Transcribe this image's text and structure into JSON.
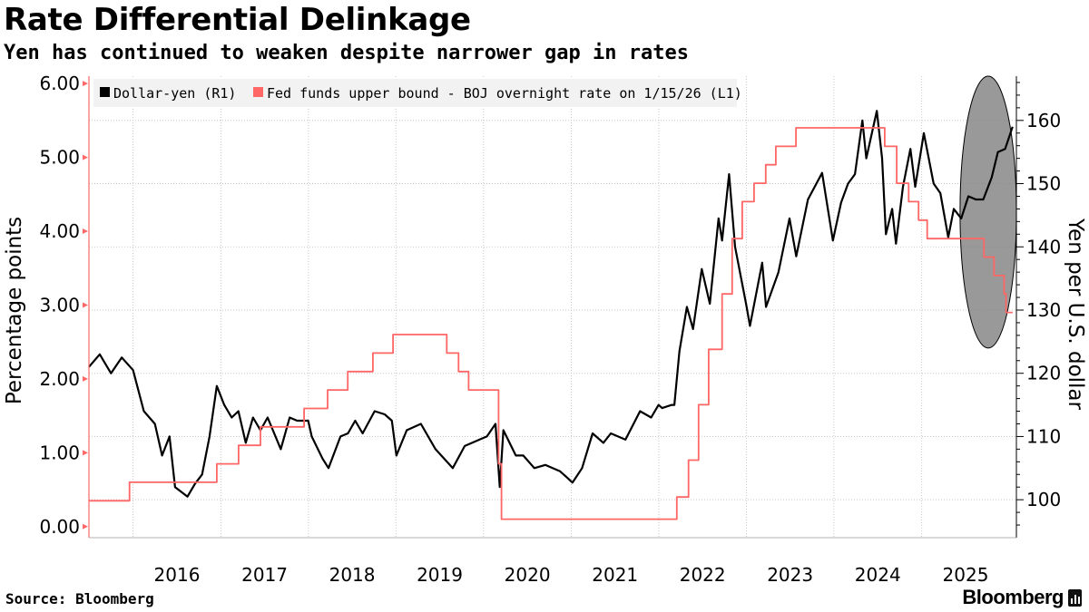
{
  "header": {
    "title": "Rate Differential Delinkage",
    "subtitle": "Yen has continued to weaken despite narrower gap in rates"
  },
  "footer": {
    "source": "Source: Bloomberg",
    "brand": "Bloomberg"
  },
  "colors": {
    "usdjpy": "#000000",
    "rate_gap": "#ff6666",
    "highlight_fill": "#7f7f7f",
    "legend_bg": "#f2f2f2",
    "grid": "#c8c8c8"
  },
  "chart_data": {
    "type": "line",
    "title": "Rate Differential Delinkage",
    "subtitle": "Yen has continued to weaken despite narrower gap in rates",
    "xlabel": "",
    "ylabel_left": "Percentage points",
    "ylabel_right": "Yen per U.S. dollar",
    "xlim": [
      "2015-07-01",
      "2026-01-31"
    ],
    "ylim_left": [
      -0.15,
      6.1
    ],
    "ylim_right": [
      94,
      167
    ],
    "x_ticks": [
      {
        "label": "2016",
        "date": "2016-01-01"
      },
      {
        "label": "2017",
        "date": "2017-01-01"
      },
      {
        "label": "2018",
        "date": "2018-01-01"
      },
      {
        "label": "2019",
        "date": "2019-01-01"
      },
      {
        "label": "2020",
        "date": "2020-01-01"
      },
      {
        "label": "2021",
        "date": "2021-01-01"
      },
      {
        "label": "2022",
        "date": "2022-01-01"
      },
      {
        "label": "2023",
        "date": "2023-01-01"
      },
      {
        "label": "2024",
        "date": "2024-01-01"
      },
      {
        "label": "2025",
        "date": "2025-01-01"
      }
    ],
    "y_ticks_left": [
      {
        "label": "0.00",
        "value": 0
      },
      {
        "label": "1.00",
        "value": 1
      },
      {
        "label": "2.00",
        "value": 2
      },
      {
        "label": "3.00",
        "value": 3
      },
      {
        "label": "4.00",
        "value": 4
      },
      {
        "label": "5.00",
        "value": 5
      },
      {
        "label": "6.00",
        "value": 6
      }
    ],
    "y_ticks_right": [
      {
        "label": "100",
        "value": 100
      },
      {
        "label": "110",
        "value": 110
      },
      {
        "label": "120",
        "value": 120
      },
      {
        "label": "130",
        "value": 130
      },
      {
        "label": "140",
        "value": 140
      },
      {
        "label": "150",
        "value": 150
      },
      {
        "label": "160",
        "value": 160
      }
    ],
    "grid": true,
    "legend_position": "top-left",
    "highlight": {
      "shape": "ellipse",
      "x_range": [
        "2025-06-10",
        "2026-01-31"
      ],
      "y_right_range": [
        124,
        167
      ]
    },
    "series": [
      {
        "name": "Dollar-yen (R1)",
        "axis": "right",
        "style": "line",
        "points": [
          [
            "2015-07-01",
            121
          ],
          [
            "2015-08-15",
            123
          ],
          [
            "2015-10-01",
            120
          ],
          [
            "2015-11-15",
            122.5
          ],
          [
            "2016-01-01",
            120.5
          ],
          [
            "2016-02-15",
            114
          ],
          [
            "2016-04-01",
            112
          ],
          [
            "2016-05-01",
            107
          ],
          [
            "2016-06-01",
            110
          ],
          [
            "2016-06-24",
            102
          ],
          [
            "2016-08-15",
            100.5
          ],
          [
            "2016-09-15",
            102.5
          ],
          [
            "2016-10-15",
            104
          ],
          [
            "2016-11-15",
            110
          ],
          [
            "2016-12-15",
            118
          ],
          [
            "2017-01-15",
            115
          ],
          [
            "2017-02-15",
            113
          ],
          [
            "2017-03-15",
            114
          ],
          [
            "2017-04-15",
            109
          ],
          [
            "2017-05-15",
            113
          ],
          [
            "2017-06-15",
            111
          ],
          [
            "2017-07-15",
            113
          ],
          [
            "2017-09-08",
            108
          ],
          [
            "2017-10-15",
            113
          ],
          [
            "2017-11-15",
            112.5
          ],
          [
            "2017-12-31",
            112.5
          ],
          [
            "2018-01-15",
            110
          ],
          [
            "2018-03-01",
            106.5
          ],
          [
            "2018-03-26",
            105
          ],
          [
            "2018-05-15",
            110
          ],
          [
            "2018-06-15",
            110.5
          ],
          [
            "2018-07-15",
            112.5
          ],
          [
            "2018-08-15",
            110.5
          ],
          [
            "2018-10-04",
            114
          ],
          [
            "2018-11-15",
            113.5
          ],
          [
            "2018-12-15",
            112.5
          ],
          [
            "2019-01-03",
            107
          ],
          [
            "2019-02-15",
            111
          ],
          [
            "2019-04-15",
            112
          ],
          [
            "2019-06-15",
            108
          ],
          [
            "2019-08-26",
            105
          ],
          [
            "2019-10-15",
            108.5
          ],
          [
            "2019-12-15",
            109.5
          ],
          [
            "2020-01-15",
            110
          ],
          [
            "2020-02-20",
            112
          ],
          [
            "2020-03-09",
            102
          ],
          [
            "2020-03-24",
            111
          ],
          [
            "2020-05-15",
            107
          ],
          [
            "2020-06-15",
            107
          ],
          [
            "2020-07-31",
            105
          ],
          [
            "2020-09-15",
            105.5
          ],
          [
            "2020-10-15",
            105
          ],
          [
            "2020-11-15",
            104.5
          ],
          [
            "2020-12-15",
            103.5
          ],
          [
            "2021-01-06",
            102.7
          ],
          [
            "2021-02-15",
            105
          ],
          [
            "2021-03-31",
            110.5
          ],
          [
            "2021-05-15",
            109
          ],
          [
            "2021-06-15",
            110.5
          ],
          [
            "2021-08-15",
            109.5
          ],
          [
            "2021-10-15",
            114
          ],
          [
            "2021-11-30",
            113
          ],
          [
            "2021-12-31",
            115
          ],
          [
            "2022-01-15",
            114.5
          ],
          [
            "2022-02-24",
            115
          ],
          [
            "2022-03-07",
            115
          ],
          [
            "2022-03-28",
            123.5
          ],
          [
            "2022-04-28",
            130.5
          ],
          [
            "2022-05-24",
            127
          ],
          [
            "2022-06-29",
            136.5
          ],
          [
            "2022-08-02",
            131
          ],
          [
            "2022-09-07",
            144.5
          ],
          [
            "2022-09-22",
            141
          ],
          [
            "2022-10-21",
            151.5
          ],
          [
            "2022-11-15",
            140
          ],
          [
            "2022-12-31",
            131
          ],
          [
            "2023-01-16",
            127.5
          ],
          [
            "2023-03-08",
            137.5
          ],
          [
            "2023-03-24",
            130.5
          ],
          [
            "2023-05-15",
            136
          ],
          [
            "2023-06-30",
            144.5
          ],
          [
            "2023-07-28",
            138.5
          ],
          [
            "2023-09-15",
            147.5
          ],
          [
            "2023-11-13",
            151.7
          ],
          [
            "2023-12-28",
            141
          ],
          [
            "2024-01-31",
            147
          ],
          [
            "2024-02-29",
            150
          ],
          [
            "2024-03-29",
            151.5
          ],
          [
            "2024-04-29",
            160
          ],
          [
            "2024-05-15",
            154
          ],
          [
            "2024-06-28",
            161.5
          ],
          [
            "2024-07-20",
            154
          ],
          [
            "2024-08-05",
            142
          ],
          [
            "2024-08-31",
            146
          ],
          [
            "2024-09-16",
            140.5
          ],
          [
            "2024-10-15",
            149.5
          ],
          [
            "2024-11-15",
            155.5
          ],
          [
            "2024-12-05",
            149.5
          ],
          [
            "2025-01-10",
            158
          ],
          [
            "2025-02-20",
            150
          ],
          [
            "2025-03-20",
            148.5
          ],
          [
            "2025-04-22",
            141.5
          ],
          [
            "2025-05-15",
            146
          ],
          [
            "2025-06-15",
            144.5
          ],
          [
            "2025-07-15",
            148
          ],
          [
            "2025-08-15",
            147.5
          ],
          [
            "2025-09-15",
            147.5
          ],
          [
            "2025-10-20",
            151
          ],
          [
            "2025-11-15",
            155
          ],
          [
            "2025-12-15",
            155.5
          ],
          [
            "2026-01-15",
            159
          ]
        ]
      },
      {
        "name": "Fed funds upper bound - BOJ overnight rate on 1/15/26 (L1)",
        "axis": "left",
        "style": "step",
        "points": [
          [
            "2015-07-01",
            0.35
          ],
          [
            "2015-12-17",
            0.6
          ],
          [
            "2016-12-15",
            0.85
          ],
          [
            "2017-03-16",
            1.1
          ],
          [
            "2017-06-15",
            1.35
          ],
          [
            "2017-12-14",
            1.6
          ],
          [
            "2018-03-22",
            1.85
          ],
          [
            "2018-06-14",
            2.1
          ],
          [
            "2018-09-27",
            2.35
          ],
          [
            "2018-12-20",
            2.6
          ],
          [
            "2019-08-01",
            2.35
          ],
          [
            "2019-09-19",
            2.1
          ],
          [
            "2019-10-31",
            1.85
          ],
          [
            "2020-03-04",
            0.85
          ],
          [
            "2020-03-16",
            0.1
          ],
          [
            "2022-03-17",
            0.4
          ],
          [
            "2022-05-05",
            0.9
          ],
          [
            "2022-06-16",
            1.65
          ],
          [
            "2022-07-28",
            2.4
          ],
          [
            "2022-09-22",
            3.15
          ],
          [
            "2022-11-03",
            3.9
          ],
          [
            "2022-12-15",
            4.4
          ],
          [
            "2023-02-02",
            4.65
          ],
          [
            "2023-03-23",
            4.9
          ],
          [
            "2023-05-04",
            5.15
          ],
          [
            "2023-07-27",
            5.4
          ],
          [
            "2024-03-19",
            5.4
          ],
          [
            "2024-07-31",
            5.15
          ],
          [
            "2024-09-19",
            4.65
          ],
          [
            "2024-11-08",
            4.4
          ],
          [
            "2024-12-19",
            4.15
          ],
          [
            "2025-01-24",
            3.9
          ],
          [
            "2025-09-18",
            3.65
          ],
          [
            "2025-10-30",
            3.4
          ],
          [
            "2025-12-11",
            3.15
          ],
          [
            "2025-12-19",
            2.9
          ],
          [
            "2026-01-15",
            2.9
          ]
        ]
      }
    ]
  }
}
